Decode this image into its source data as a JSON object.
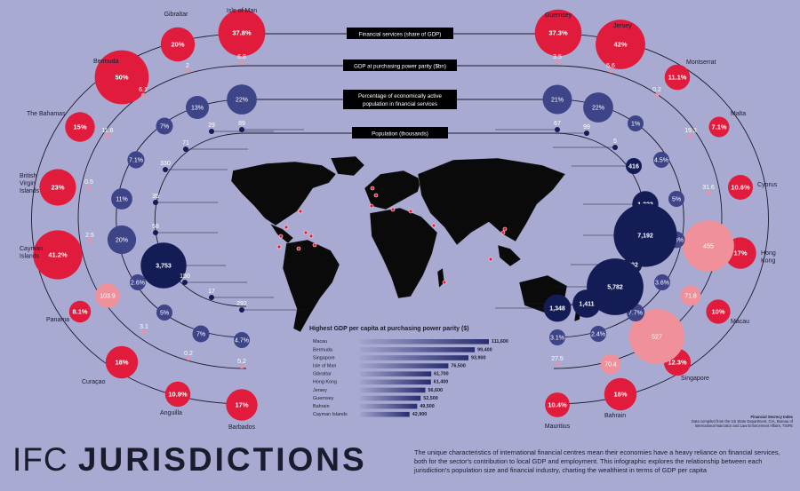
{
  "title": {
    "part1": "IFC",
    "part2": "JURISDICTIONS"
  },
  "description": "The unique characteristics of international financial centres mean their economies have a heavy reliance on financial services, both for the sector's contribution to local GDP and employment. This infographic explores the relationship between each jurisdiction's population size and financial industry, charting the wealthiest in terms of GDP per capita",
  "credit": {
    "name": "Financial Secrecy Index",
    "source": "Data compiled from the US State Department, CIA, Bureau of International Narcotics and Law Enforcement Affairs, TSIFE"
  },
  "legend": [
    "Financial services (share of GDP)",
    "GDP at purchasing power parity ($bn)",
    "Percentage of economically active population in financial services",
    "Population (thousands)"
  ],
  "colors": {
    "background": "#a9aad2",
    "fin": "#e01b3c",
    "gdp": "#f0909a",
    "emp": "#3e4488",
    "pop": "#141c55",
    "map": "#0a0a0a"
  },
  "jurisdictions": [
    {
      "name": "Gibraltar",
      "fin": "20%",
      "gdp": "2",
      "emp": "7%",
      "pop": "29"
    },
    {
      "name": "Isle of Man",
      "fin": "37.8%",
      "gdp": "6.8",
      "emp": "22%",
      "pop": "89"
    },
    {
      "name": "Bermuda",
      "fin": "50%",
      "gdp": "6.1",
      "emp": "13%",
      "pop": "71"
    },
    {
      "name": "The Bahamas",
      "fin": "15%",
      "gdp": "11.6",
      "emp": "7.1%",
      "pop": "330"
    },
    {
      "name": "British Virgin Islands",
      "fin": "23%",
      "gdp": "0.5",
      "emp": "11%",
      "pop": "35"
    },
    {
      "name": "Cayman Islands",
      "fin": "41.2%",
      "gdp": "2.5",
      "emp": "20%",
      "pop": "58"
    },
    {
      "name": "Panama",
      "fin": "8.1%",
      "gdp": "103.9",
      "emp": "2.6%",
      "pop": "3,753"
    },
    {
      "name": "Curaçao",
      "fin": "18%",
      "gdp": "3.1",
      "emp": "5%",
      "pop": "150"
    },
    {
      "name": "Anguilla",
      "fin": "10.9%",
      "gdp": "0.2",
      "emp": "7%",
      "pop": "17"
    },
    {
      "name": "Barbados",
      "fin": "17%",
      "gdp": "5.2",
      "emp": "4.7%",
      "pop": "292"
    },
    {
      "name": "Guernsey",
      "fin": "37.3%",
      "gdp": "3.5",
      "emp": "21%",
      "pop": "67"
    },
    {
      "name": "Jersey",
      "fin": "42%",
      "gdp": "5.6",
      "emp": "22%",
      "pop": "99"
    },
    {
      "name": "Montserrat",
      "fin": "11.1%",
      "gdp": "0.2",
      "emp": "1%",
      "pop": "5"
    },
    {
      "name": "Malta",
      "fin": "7.1%",
      "gdp": "19.3",
      "emp": "4.5%",
      "pop": "416"
    },
    {
      "name": "Cyprus",
      "fin": "10.6%",
      "gdp": "31.6",
      "emp": "5%",
      "pop": "1,222"
    },
    {
      "name": "Hong Kong",
      "fin": "17%",
      "gdp": "455",
      "emp": "6.8%",
      "pop": "7,192"
    },
    {
      "name": "Macau",
      "fin": "10%",
      "gdp": "71.8",
      "emp": "3.6%",
      "pop": "602"
    },
    {
      "name": "Singapore",
      "fin": "12.3%",
      "gdp": "527",
      "emp": "7.7%",
      "pop": "5,782"
    },
    {
      "name": "Bahrain",
      "fin": "18%",
      "gdp": "70.4",
      "emp": "2.4%",
      "pop": "1,411"
    },
    {
      "name": "Mauritius",
      "fin": "10.4%",
      "gdp": "27.5",
      "emp": "3.1%",
      "pop": "1,348"
    }
  ],
  "chart_data": {
    "type": "bar",
    "title": "Highest GDP per capita at purchasing power parity ($)",
    "categories": [
      "Macau",
      "Bermuda",
      "Singapore",
      "Isle of Man",
      "Gibraltar",
      "Hong Kong",
      "Jersey",
      "Guernsey",
      "Bahrain",
      "Cayman Islands"
    ],
    "values": [
      111600,
      99400,
      93900,
      76500,
      61700,
      61400,
      56600,
      52500,
      49500,
      42900
    ],
    "value_labels": [
      "111,600",
      "99,400",
      "93,900",
      "76,500",
      "61,700",
      "61,400",
      "56,600",
      "52,500",
      "49,500",
      "42,900"
    ],
    "xlim": [
      0,
      111600
    ],
    "bar_color": "#272d6e"
  }
}
